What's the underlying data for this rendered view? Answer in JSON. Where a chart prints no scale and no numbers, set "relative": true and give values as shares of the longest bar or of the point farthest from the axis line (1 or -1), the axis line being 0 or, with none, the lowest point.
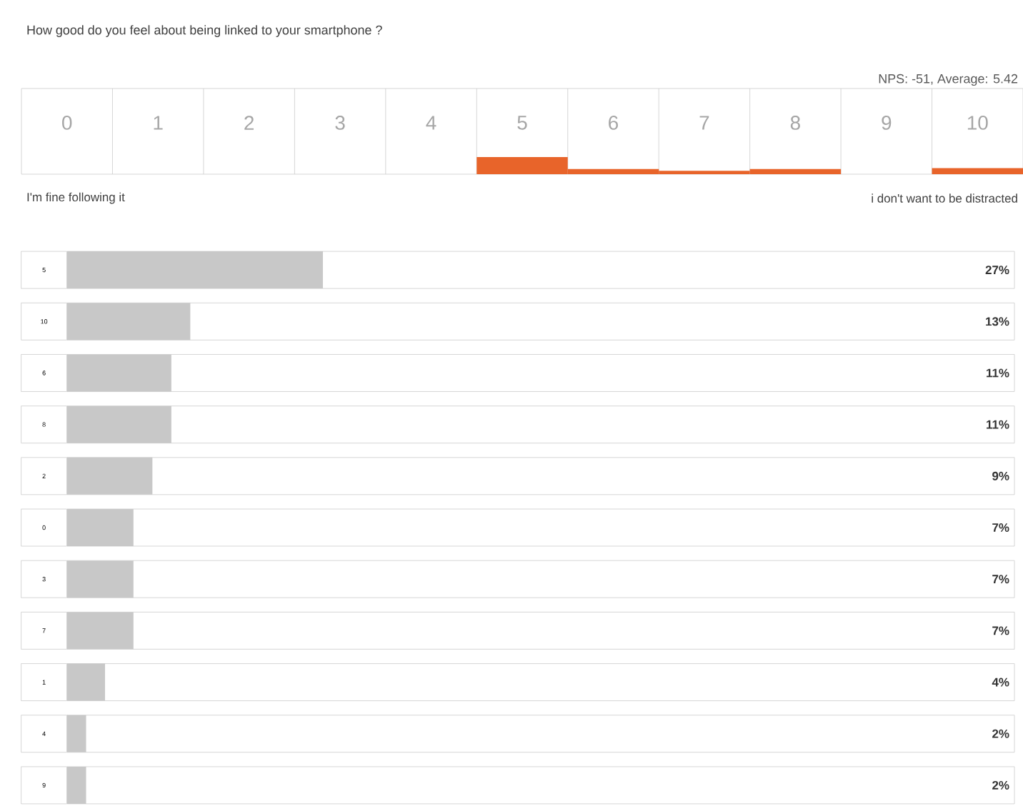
{
  "chart_data": [
    {
      "type": "bar",
      "title": "How good do you feel about being linked to your smartphone ?",
      "subtitle": "NPS: -51, Average: 5.42",
      "categories": [
        "0",
        "1",
        "2",
        "3",
        "4",
        "5",
        "6",
        "7",
        "8",
        "9",
        "10"
      ],
      "values": [
        0,
        0,
        0,
        0,
        0,
        1,
        0.3,
        0.2,
        0.3,
        0,
        0.35
      ],
      "color": "#e8642a",
      "relative": true,
      "tick_labels": "x",
      "annotations": [
        "I'm fine following it",
        "i don't want to be distracted"
      ]
    },
    {
      "type": "bar",
      "orientation": "horizontal",
      "categories": [
        "5",
        "10",
        "6",
        "8",
        "2",
        "0",
        "3",
        "7",
        "1",
        "4",
        "9"
      ],
      "values": [
        27,
        13,
        11,
        11,
        9,
        7,
        7,
        7,
        4,
        2,
        2
      ],
      "value_labels": [
        "27%",
        "13%",
        "11%",
        "11%",
        "9%",
        "7%",
        "7%",
        "7%",
        "4%",
        "2%",
        "2%"
      ],
      "color": "#c8c8c8",
      "xlim": [
        0,
        100
      ],
      "tick_labels": "y"
    }
  ]
}
